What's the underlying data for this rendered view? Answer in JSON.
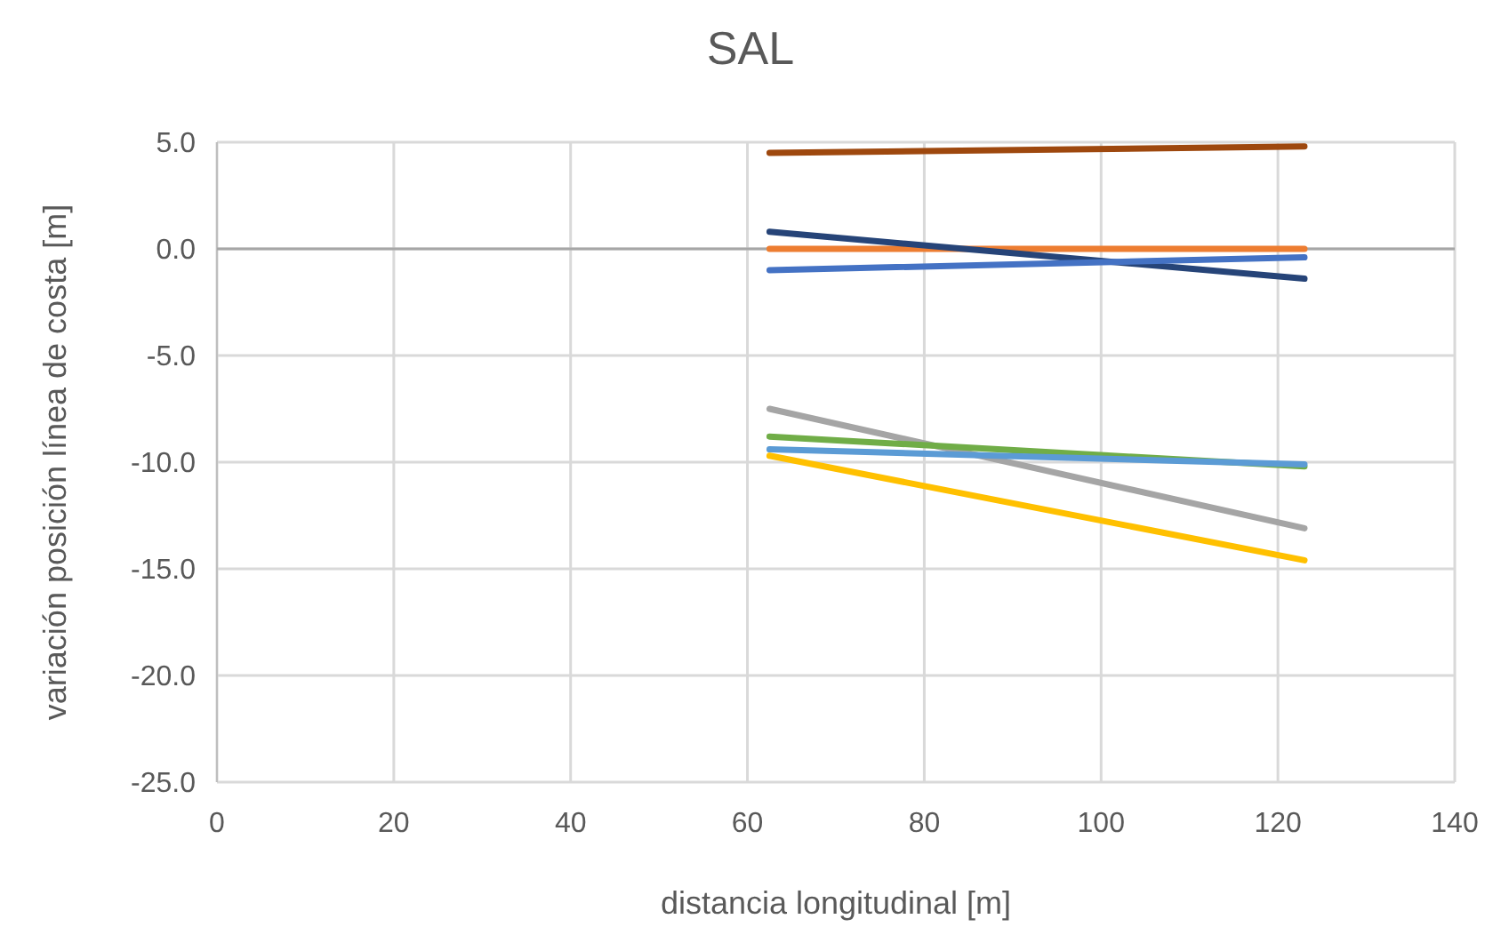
{
  "chart_data": {
    "type": "line",
    "title": "SAL",
    "xlabel": "distancia longitudinal [m]",
    "ylabel": "variación posición línea de costa [m]",
    "x": [
      62.5,
      123
    ],
    "series": [
      {
        "color": "#9e480e",
        "values": [
          4.5,
          4.8
        ]
      },
      {
        "color": "#ed7d31",
        "values": [
          0,
          0
        ]
      },
      {
        "color": "#264478",
        "values": [
          0.8,
          -1.4
        ]
      },
      {
        "color": "#4472c4",
        "values": [
          -1.0,
          -0.4
        ]
      },
      {
        "color": "#a5a5a5",
        "values": [
          -7.5,
          -13.1
        ]
      },
      {
        "color": "#70ad47",
        "values": [
          -8.8,
          -10.2
        ]
      },
      {
        "color": "#5b9bd5",
        "values": [
          -9.4,
          -10.1
        ]
      },
      {
        "color": "#ffc000",
        "values": [
          -9.7,
          -14.6
        ]
      }
    ],
    "xlim": [
      0,
      140
    ],
    "xticks": [
      0,
      20,
      40,
      60,
      80,
      100,
      120,
      140
    ],
    "ylim": [
      -25,
      5
    ],
    "yticks": [
      {
        "value": -25,
        "label": "-25.0"
      },
      {
        "value": -20,
        "label": "-20.0"
      },
      {
        "value": -15,
        "label": "-15.0"
      },
      {
        "value": -10,
        "label": "-10.0"
      },
      {
        "value": -5,
        "label": "-5.0"
      },
      {
        "value": 0,
        "label": "0.0"
      },
      {
        "value": 5,
        "label": "5.0"
      }
    ],
    "grid": true,
    "line_style": "solid",
    "marker": "none"
  }
}
